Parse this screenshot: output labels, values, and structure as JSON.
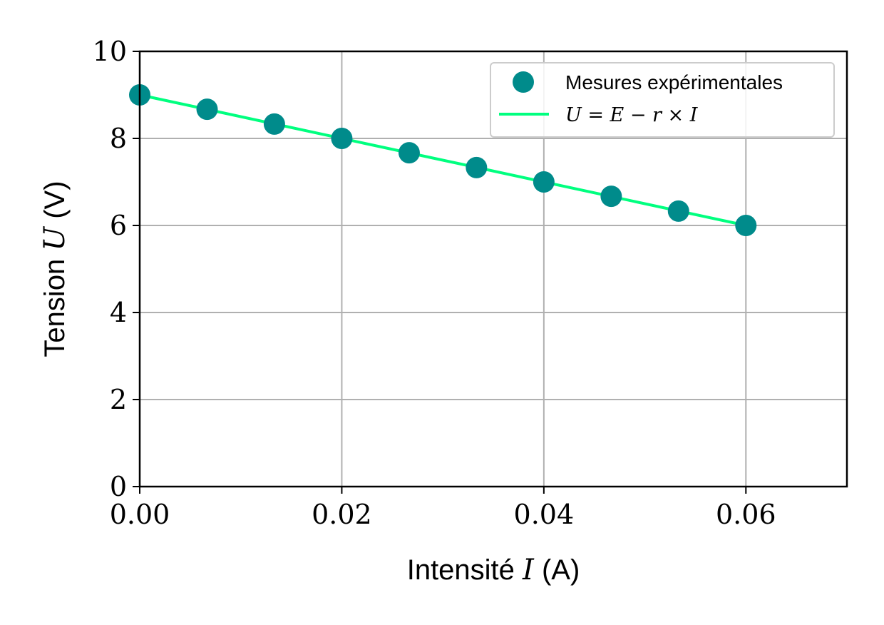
{
  "chart_data": {
    "type": "scatter",
    "xlabel": {
      "prefix": "Intensité ",
      "symbol": "I",
      "suffix": " (A)"
    },
    "ylabel": {
      "prefix": "Tension ",
      "symbol": "U",
      "suffix": " (V)"
    },
    "xlim": [
      0,
      0.07
    ],
    "ylim": [
      0,
      10
    ],
    "xticks": [
      0,
      0.02,
      0.04,
      0.06
    ],
    "xtick_labels": [
      "0.00",
      "0.02",
      "0.04",
      "0.06"
    ],
    "yticks": [
      0,
      2,
      4,
      6,
      8,
      10
    ],
    "ytick_labels": [
      "0",
      "2",
      "4",
      "6",
      "8",
      "10"
    ],
    "grid": true,
    "legend_position": "top-right",
    "series": [
      {
        "name": "Mesures expérimentales",
        "kind": "scatter",
        "color": "#008b8b",
        "x": [
          0,
          0.00667,
          0.01333,
          0.02,
          0.02667,
          0.03333,
          0.04,
          0.04667,
          0.05333,
          0.06
        ],
        "y": [
          9.0,
          8.67,
          8.33,
          8.0,
          7.67,
          7.33,
          7.0,
          6.67,
          6.33,
          6.0
        ]
      },
      {
        "name": "U = E − r × I",
        "kind": "line",
        "color": "#00ff7f",
        "x": [
          0,
          0.06
        ],
        "y": [
          9.0,
          6.0
        ]
      }
    ]
  }
}
